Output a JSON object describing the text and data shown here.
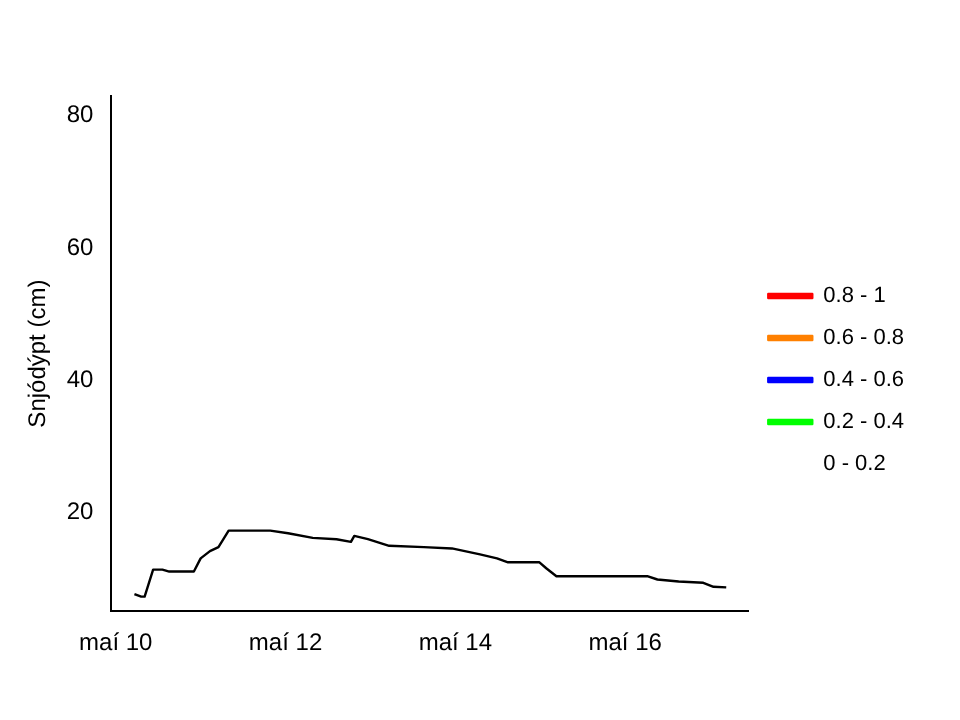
{
  "chart_data": {
    "type": "line",
    "ylabel": "Snjódýpt (cm)",
    "xlim": [
      "--05-09T22:48",
      "--05-17T10:48"
    ],
    "xticks": [
      {
        "value": "--05-10",
        "label": "maí 10"
      },
      {
        "value": "--05-12",
        "label": "maí 12"
      },
      {
        "value": "--05-14",
        "label": "maí 14"
      },
      {
        "value": "--05-16",
        "label": "maí 16"
      }
    ],
    "ylim": [
      5,
      83
    ],
    "yticks": [
      20,
      40,
      60,
      80
    ],
    "grid": false,
    "legend": "right",
    "marker": "none",
    "line_style": "solid",
    "x": [
      "--05-10T05:17",
      "--05-10T07:12",
      "--05-10T08:10",
      "--05-10T10:34",
      "--05-10T13:12",
      "--05-10T15:07",
      "--05-10T22:05",
      "--05-11T00:00",
      "--05-11T02:38",
      "--05-11T05:02",
      "--05-11T07:55",
      "--05-11T19:41",
      "--05-12T00:43",
      "--05-12T07:41",
      "--05-12T14:24",
      "--05-12T18:29",
      "--05-12T19:26",
      "--05-12T23:17",
      "--05-13T05:17",
      "--05-13T15:07",
      "--05-13T23:02",
      "--05-14T06:58",
      "--05-14T11:46",
      "--05-14T14:53",
      "--05-14T23:46",
      "--05-15T01:41",
      "--05-15T04:34",
      "--05-16T06:14",
      "--05-16T09:07",
      "--05-16T15:07",
      "--05-16T22:05",
      "--05-17T00:58",
      "--05-17T04:34"
    ],
    "series": [
      {
        "color": "#000000",
        "values": [
          7.6,
          7.2,
          7.2,
          11.3,
          11.3,
          11.0,
          11.0,
          13.0,
          14.1,
          14.7,
          17.2,
          17.2,
          16.8,
          16.1,
          15.9,
          15.5,
          16.4,
          15.9,
          14.9,
          14.7,
          14.5,
          13.6,
          13.0,
          12.4,
          12.4,
          11.5,
          10.3,
          10.3,
          9.8,
          9.5,
          9.3,
          8.7,
          8.6
        ]
      },
      {
        "name": "0.8 - 1",
        "color": "#ff0000",
        "values": [
          null,
          null,
          null,
          null,
          null,
          null,
          null,
          null,
          null,
          null,
          null,
          null,
          null,
          null,
          null,
          null,
          null,
          null,
          null,
          null,
          null,
          null,
          null,
          null,
          null,
          null,
          null,
          null,
          null,
          null,
          null,
          null,
          null
        ]
      },
      {
        "name": "0.6 - 0.8",
        "color": "#ff8000",
        "values": [
          null,
          null,
          null,
          null,
          null,
          null,
          null,
          null,
          null,
          null,
          null,
          null,
          null,
          null,
          null,
          null,
          null,
          null,
          null,
          null,
          null,
          null,
          null,
          null,
          null,
          null,
          null,
          null,
          null,
          null,
          null,
          null,
          null
        ]
      },
      {
        "name": "0.4 - 0.6",
        "color": "#0000ff",
        "values": [
          null,
          null,
          null,
          null,
          null,
          null,
          null,
          null,
          null,
          null,
          null,
          null,
          null,
          null,
          null,
          null,
          null,
          null,
          null,
          null,
          null,
          null,
          null,
          null,
          null,
          null,
          null,
          null,
          null,
          null,
          null,
          null,
          null
        ]
      },
      {
        "name": "0.2 - 0.4",
        "color": "#00ff00",
        "values": [
          null,
          null,
          null,
          null,
          null,
          null,
          null,
          null,
          null,
          null,
          null,
          null,
          null,
          null,
          null,
          null,
          null,
          null,
          null,
          null,
          null,
          null,
          null,
          null,
          null,
          null,
          null,
          null,
          null,
          null,
          null,
          null,
          null
        ]
      },
      {
        "name": "0 - 0.2",
        "values": [
          null,
          null,
          null,
          null,
          null,
          null,
          null,
          null,
          null,
          null,
          null,
          null,
          null,
          null,
          null,
          null,
          null,
          null,
          null,
          null,
          null,
          null,
          null,
          null,
          null,
          null,
          null,
          null,
          null,
          null,
          null,
          null,
          null
        ]
      }
    ]
  }
}
